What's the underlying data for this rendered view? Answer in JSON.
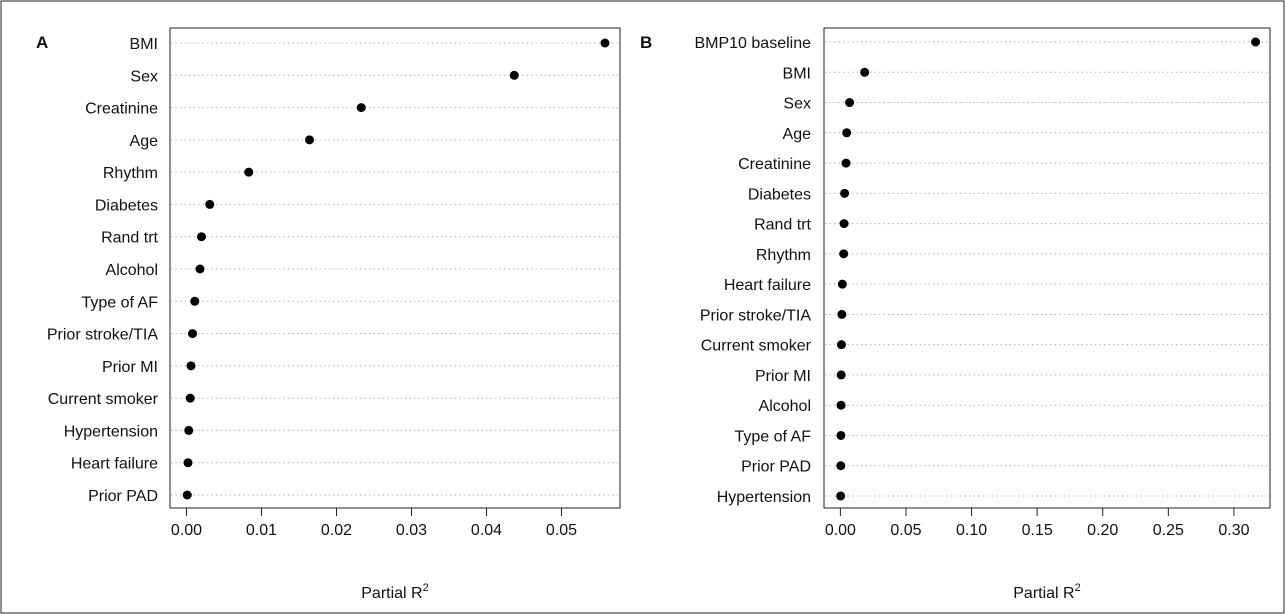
{
  "chart_data": [
    {
      "panel": "A",
      "type": "scatter",
      "categories": [
        "BMI",
        "Sex",
        "Creatinine",
        "Age",
        "Rhythm",
        "Diabetes",
        "Rand trt",
        "Alcohol",
        "Type of AF",
        "Prior stroke/TIA",
        "Prior MI",
        "Current smoker",
        "Hypertension",
        "Heart failure",
        "Prior PAD"
      ],
      "values": [
        0.0558,
        0.0437,
        0.0233,
        0.0164,
        0.0083,
        0.0031,
        0.002,
        0.0018,
        0.0011,
        0.0008,
        0.0006,
        0.0005,
        0.0003,
        0.0002,
        0.0001
      ],
      "xlabel": "Partial R",
      "xlabel_sup": "2",
      "xticks": [
        "0.00",
        "0.01",
        "0.02",
        "0.03",
        "0.04",
        "0.05"
      ],
      "xlim": [
        -0.0022,
        0.0578
      ],
      "grid": "dotted horizontal"
    },
    {
      "panel": "B",
      "type": "scatter",
      "categories": [
        "BMP10 baseline",
        "BMI",
        "Sex",
        "Age",
        "Creatinine",
        "Diabetes",
        "Rand trt",
        "Rhythm",
        "Heart failure",
        "Prior stroke/TIA",
        "Current smoker",
        "Prior MI",
        "Alcohol",
        "Type of AF",
        "Prior PAD",
        "Hypertension"
      ],
      "values": [
        0.3165,
        0.0185,
        0.007,
        0.0048,
        0.0043,
        0.0032,
        0.0028,
        0.0025,
        0.0015,
        0.0011,
        0.0008,
        0.0006,
        0.0005,
        0.0004,
        0.0003,
        0.0002
      ],
      "xlabel": "Partial R",
      "xlabel_sup": "2",
      "xticks": [
        "0.00",
        "0.05",
        "0.10",
        "0.15",
        "0.20",
        "0.25",
        "0.30"
      ],
      "xlim": [
        -0.0125,
        0.3275
      ],
      "grid": "dotted horizontal"
    }
  ]
}
